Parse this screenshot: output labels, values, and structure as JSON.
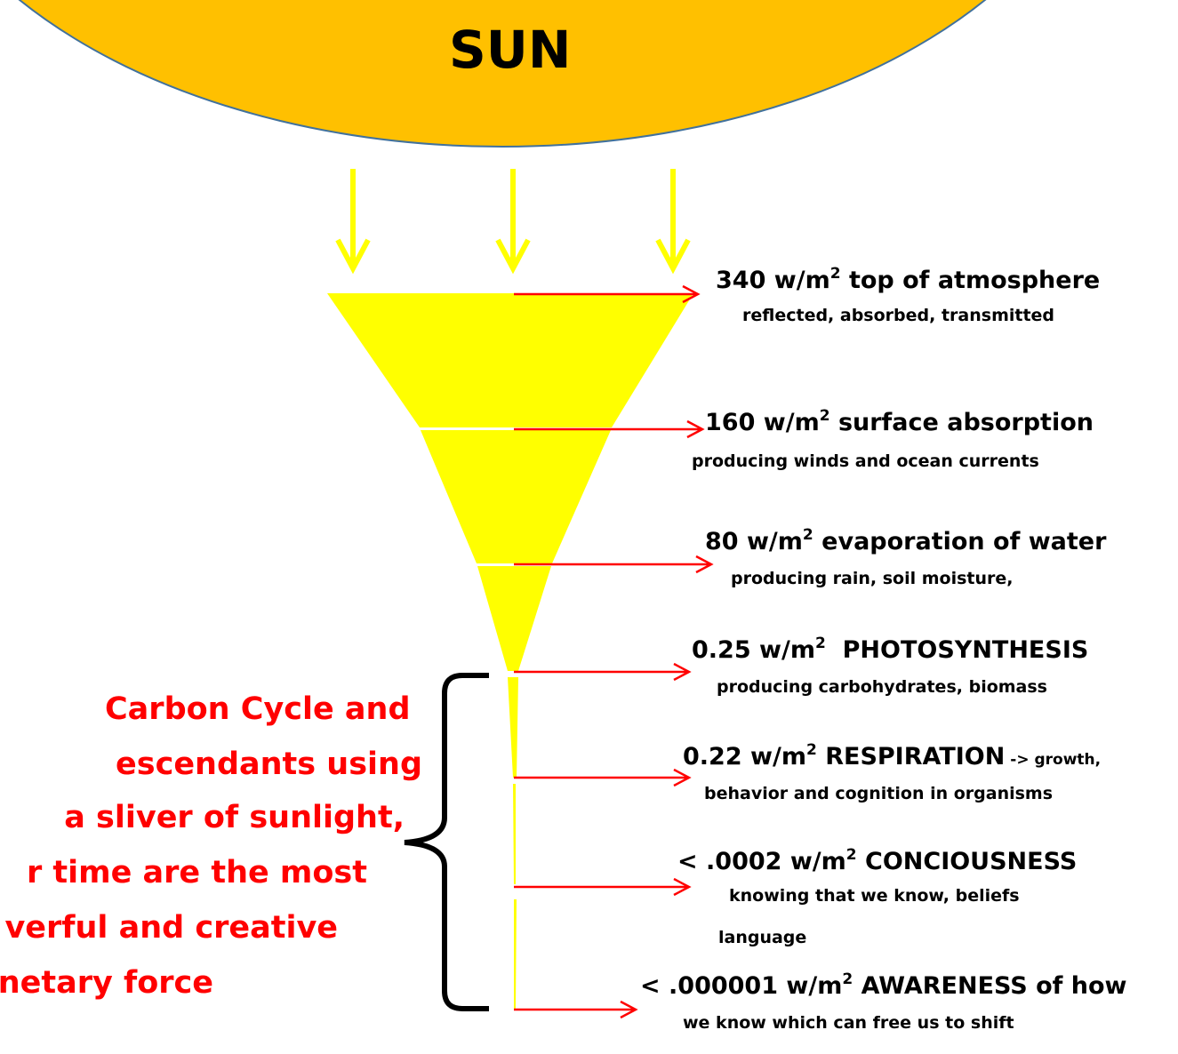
{
  "sun": "SUN",
  "levels": [
    {
      "lead": "340 w/m",
      "sup": "2",
      "title": " top of atmosphere",
      "details": [
        "reflected, absorbed, transmitted"
      ]
    },
    {
      "lead": "160 w/m",
      "sup": "2",
      "title": " surface absorption",
      "details": [
        "producing winds and ocean currents"
      ]
    },
    {
      "lead": "80 w/m",
      "sup": "2",
      "title": " evaporation of water",
      "details": [
        "producing rain, soil moisture,"
      ]
    },
    {
      "lead": "0.25 w/m",
      "sup": "2",
      "title": "  PHOTOSYNTHESIS",
      "details": [
        "producing carbohydrates, biomass"
      ]
    },
    {
      "lead": "0.22 w/m",
      "sup": "2",
      "title": " RESPIRATION",
      "title_small": " -> growth,",
      "details": [
        "behavior and cognition in organisms"
      ]
    },
    {
      "lead": "< .0002 w/m",
      "sup": "2",
      "title": " CONCIOUSNESS",
      "details": [
        "knowing that we know, beliefs",
        "language"
      ]
    },
    {
      "lead": "< .000001 w/m",
      "sup": "2",
      "title": " AWARENESS of how",
      "details": [
        "we know which can free us to shift"
      ]
    }
  ],
  "side_text": [
    "Carbon Cycle and",
    "escendants using",
    "a sliver of sunlight,",
    "r time are the most",
    "verful and creative",
    "netary force"
  ]
}
